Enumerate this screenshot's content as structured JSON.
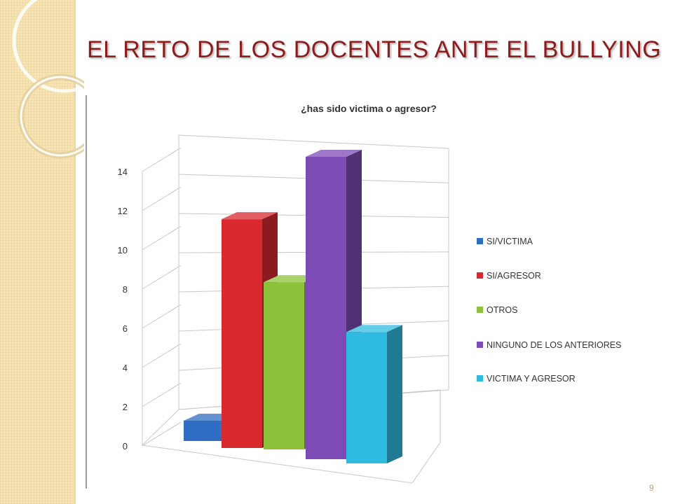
{
  "slide": {
    "title": "EL RETO DE LOS DOCENTES ANTE EL BULLYING",
    "page_number": "9"
  },
  "chart_data": {
    "type": "bar",
    "title": "¿has sido victima o agresor?",
    "xlabel": "",
    "ylabel": "",
    "ylim": [
      0,
      14
    ],
    "yticks": [
      0,
      2,
      4,
      6,
      8,
      10,
      12,
      14
    ],
    "grid": true,
    "legend_position": "right",
    "categories": [
      "SI/VICTIMA",
      "SI/AGRESOR",
      "OTROS",
      "NINGUNO DE LOS ANTERIORES",
      "VICTIMA Y AGRESOR"
    ],
    "values": [
      1,
      11,
      8,
      14,
      6
    ],
    "colors": [
      "#2f6ec2",
      "#d8292f",
      "#8fc23b",
      "#7d4bb5",
      "#2fbbe0"
    ]
  }
}
